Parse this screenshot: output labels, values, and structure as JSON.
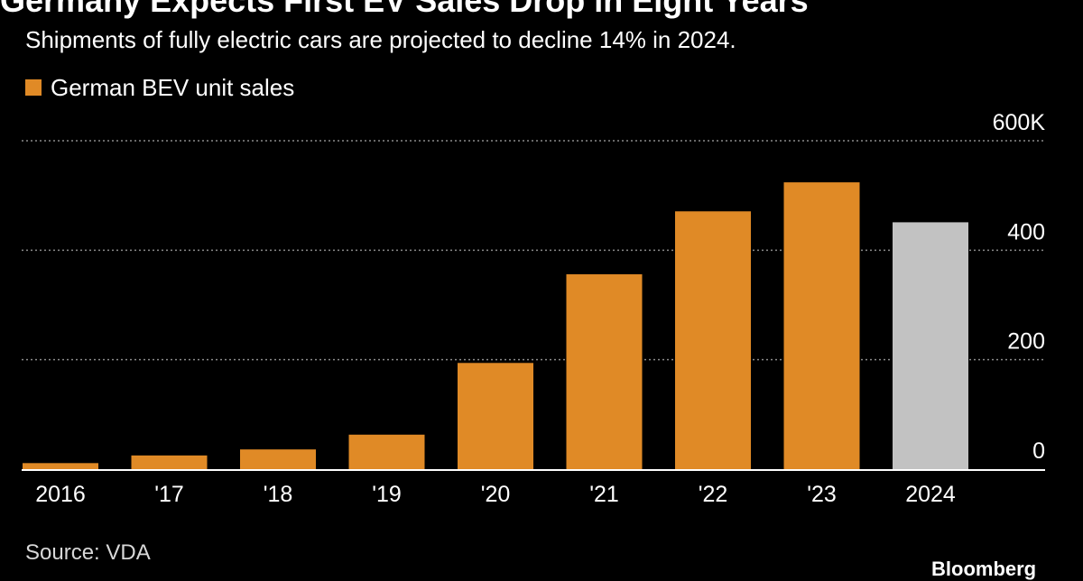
{
  "colors": {
    "background": "#000000",
    "actual_bar": "#E08A26",
    "forecast_bar": "#C2C2C2",
    "gridline": "#8a8a8a",
    "axis_text": "#ffffff"
  },
  "header": {
    "title": "Germany Expects First EV Sales Drop in Eight Years",
    "subtitle": "Shipments of fully electric cars are projected to decline 14% in 2024."
  },
  "legend": {
    "label": "German BEV unit sales"
  },
  "footer": {
    "source": "Source: VDA",
    "logo_text": "Bloomberg"
  },
  "chart_data": {
    "type": "bar",
    "title": "Germany Expects First EV Sales Drop in Eight Years",
    "subtitle": "Shipments of fully electric cars are projected to decline 14% in 2024.",
    "categories": [
      "2016",
      "'17",
      "'18",
      "'19",
      "'20",
      "'21",
      "'22",
      "'23",
      "2024"
    ],
    "series": [
      {
        "name": "German BEV unit sales",
        "values": [
          11,
          25,
          36,
          63,
          194,
          356,
          471,
          524,
          451
        ]
      }
    ],
    "forecast_categories": [
      "2024"
    ],
    "ylim": [
      0,
      600
    ],
    "yticks": [
      0,
      200,
      400,
      600
    ],
    "ytick_labels": [
      "0",
      "200",
      "400",
      "600K"
    ],
    "y_axis_side": "right",
    "grid": true,
    "legend_position": "top-left"
  }
}
